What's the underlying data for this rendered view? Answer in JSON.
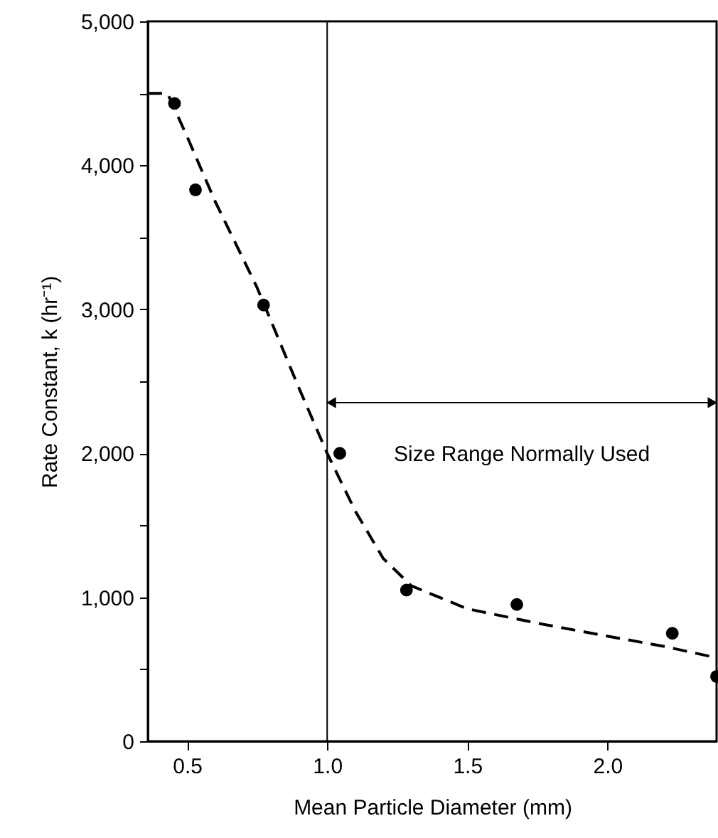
{
  "chart_data": {
    "type": "scatter",
    "xlabel": "Mean Particle Diameter (mm)",
    "ylabel": "Rate Constant, k (hr⁻¹)",
    "xlim": [
      0.36,
      2.39
    ],
    "xticks": [
      0.5,
      {
        "value": 1,
        "label": "1.0"
      },
      1.5,
      {
        "value": 2,
        "label": "2.0"
      }
    ],
    "ylim": [
      0,
      5000
    ],
    "yticks": [
      {
        "value": 0,
        "label": "0"
      },
      {
        "value": 500,
        "label": null
      },
      {
        "value": 1000,
        "label": "1,000"
      },
      {
        "value": 1500,
        "label": null
      },
      {
        "value": 2000,
        "label": "2,000"
      },
      {
        "value": 2500,
        "label": null
      },
      {
        "value": 3000,
        "label": "3,000"
      },
      {
        "value": 3500,
        "label": null
      },
      {
        "value": 4000,
        "label": "4,000"
      },
      {
        "value": 4500,
        "label": null
      },
      {
        "value": 5000,
        "label": "5,000"
      }
    ],
    "marker": "circle",
    "series": [
      {
        "type": "scatter",
        "color": "#000000",
        "x": [
          0.455,
          0.53,
          0.773,
          1.045,
          1.283,
          1.677,
          2.232,
          2.39
        ],
        "values": [
          4430,
          3830,
          3030,
          2000,
          1050,
          950,
          750,
          450
        ]
      },
      {
        "type": "line",
        "color": "#000000",
        "line_style": "dashed",
        "marker": "none",
        "x": [
          0.36,
          0.43,
          0.5,
          0.6,
          0.75,
          0.9,
          1.0,
          1.1,
          1.2,
          1.3,
          1.5,
          1.75,
          2.0,
          2.2,
          2.39
        ],
        "values": [
          4500,
          4500,
          4200,
          3750,
          3150,
          2450,
          2000,
          1600,
          1270,
          1080,
          920,
          820,
          730,
          660,
          580
        ]
      }
    ],
    "ref_lines": [
      {
        "axis": "x",
        "value": 1.0,
        "color": "#000000"
      }
    ],
    "annotations": [
      "Size Range Normally Used"
    ]
  }
}
